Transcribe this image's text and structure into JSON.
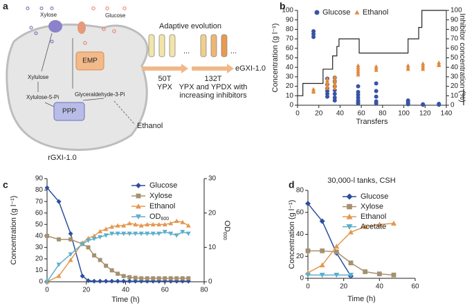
{
  "diagram": {
    "panel": "a",
    "xylose": "Xylose",
    "glucose": "Glucose",
    "xylulose": "Xylulose",
    "xylulose5p": "Xylulose-5-Pi",
    "emp": "EMP",
    "ppp": "PPP",
    "g3p": "Glyceraldehyde-3-Pi",
    "ethanol": "Ethanol",
    "strain_start": "rGXI-1.0",
    "evolution": "Adaptive evolution",
    "dots1": "...",
    "dots2": "...",
    "step1_transfers": "50T",
    "step1_medium": "YPX",
    "step2_transfers": "132T",
    "step2_medium_1": "YPX and YPDX with",
    "step2_medium_2": "increasing inhibitors",
    "strain_end": "eGXI-1.0"
  },
  "chart_data": [
    {
      "panel": "b",
      "type": "scatter",
      "xlabel": "Transfers",
      "ylabel": "Concentration (g l⁻¹)",
      "y2label": "Inhibitor concentration (%)",
      "xlim": [
        0,
        140
      ],
      "xticks": [
        0,
        20,
        40,
        60,
        80,
        100,
        120,
        140
      ],
      "ylim": [
        0,
        100
      ],
      "yticks": [
        0,
        10,
        20,
        30,
        40,
        50,
        60,
        70,
        80,
        90,
        100
      ],
      "y2lim": [
        0,
        100
      ],
      "y2ticks": [
        0,
        10,
        20,
        30,
        40,
        50,
        60,
        70,
        80,
        90,
        100
      ],
      "legend": "top",
      "series": [
        {
          "name": "Glucose",
          "color": "#3953a4",
          "marker": "circle",
          "x": [
            15,
            15,
            15,
            28,
            28,
            28,
            28,
            28,
            28,
            35,
            35,
            35,
            35,
            35,
            35,
            35,
            57,
            57,
            57,
            57,
            57,
            57,
            57,
            74,
            74,
            74,
            74,
            74,
            104,
            104,
            104,
            104,
            118,
            118,
            133,
            133
          ],
          "values": [
            78,
            75,
            72,
            28,
            22,
            18,
            15,
            12,
            9,
            29,
            25,
            20,
            16,
            12,
            8,
            5,
            20,
            14,
            11,
            8,
            5,
            3,
            2,
            23,
            15,
            9,
            4,
            2,
            5,
            3,
            2,
            1,
            1,
            0.5,
            1.5,
            0.5
          ]
        },
        {
          "name": "Ethanol",
          "color": "#e08a3c",
          "marker": "triangle",
          "x": [
            15,
            15,
            15,
            28,
            28,
            28,
            28,
            28,
            28,
            35,
            35,
            35,
            35,
            35,
            35,
            35,
            57,
            57,
            57,
            57,
            57,
            57,
            74,
            74,
            74,
            104,
            104,
            104,
            118,
            118,
            118,
            118,
            133,
            133,
            133
          ],
          "values": [
            17,
            15,
            14,
            28,
            26,
            24,
            22,
            20,
            18,
            30,
            28,
            26,
            24,
            22,
            20,
            18,
            42,
            40,
            38,
            36,
            34,
            32,
            41,
            39,
            37,
            42,
            40,
            38,
            44,
            42,
            40,
            38,
            45,
            43,
            42
          ]
        },
        {
          "color": "#222222",
          "axis": "y2",
          "step": "post",
          "x": [
            0,
            5,
            24,
            33,
            37,
            39,
            58,
            104,
            114,
            117,
            140
          ],
          "values": [
            10,
            23,
            38,
            52,
            62,
            70,
            55,
            70,
            82,
            100,
            100
          ]
        }
      ]
    },
    {
      "panel": "c",
      "type": "line",
      "xlabel": "Time (h)",
      "ylabel": "Concentration (g l⁻¹)",
      "y2label": "OD600",
      "xlim": [
        0,
        80
      ],
      "xticks": [
        0,
        20,
        40,
        60,
        80
      ],
      "ylim": [
        0,
        90
      ],
      "yticks": [
        0,
        10,
        20,
        30,
        40,
        50,
        60,
        70,
        80,
        90
      ],
      "y2lim": [
        0,
        30
      ],
      "y2ticks": [
        0,
        10,
        20,
        30
      ],
      "legend": "upper right",
      "x": [
        0,
        6,
        12,
        18,
        21,
        24,
        27,
        30,
        33,
        36,
        39,
        42,
        45,
        48,
        51,
        54,
        57,
        60,
        63,
        66,
        69,
        72
      ],
      "series": [
        {
          "name": "Glucose",
          "color": "#2c4f9e",
          "marker": "diamond",
          "values": [
            82,
            70,
            42,
            5,
            1,
            0.5,
            0.5,
            0.5,
            0.5,
            0.5,
            0.5,
            0.5,
            0.5,
            0.5,
            0.5,
            0.5,
            0.5,
            0.5,
            0.5,
            0.5,
            0.5,
            0.5
          ]
        },
        {
          "name": "Xylose",
          "color": "#a5916f",
          "marker": "square",
          "values": [
            40,
            37,
            37,
            33,
            30,
            23,
            19,
            14,
            10,
            7,
            5,
            4,
            3.5,
            3,
            3,
            3,
            3,
            3,
            3,
            3,
            3,
            3
          ]
        },
        {
          "name": "Ethanol",
          "color": "#e3984f",
          "marker": "triangle",
          "values": [
            0,
            5,
            19,
            34,
            38,
            40,
            44,
            46,
            48,
            49,
            49,
            51,
            50,
            49,
            50,
            50,
            50,
            50,
            51,
            53,
            52,
            49
          ]
        },
        {
          "name": "OD600",
          "color": "#5eaecd",
          "marker": "triangle-down",
          "axis": "y2",
          "values": [
            0,
            5,
            8,
            11,
            12,
            12.5,
            13,
            13.5,
            14,
            14,
            14,
            14,
            14,
            14,
            14,
            14,
            14,
            14.5,
            14,
            13.5,
            14.5,
            14
          ]
        }
      ]
    },
    {
      "panel": "d",
      "type": "line",
      "title": "30,000-l tanks, CSH",
      "xlabel": "Time (h)",
      "ylabel": "Concentration (g l⁻¹)",
      "xlim": [
        0,
        60
      ],
      "xticks": [
        0,
        20,
        40,
        60
      ],
      "ylim": [
        0,
        80
      ],
      "yticks": [
        0,
        20,
        40,
        60,
        80
      ],
      "legend": "upper right",
      "x": [
        0,
        8,
        16,
        24,
        32,
        40,
        48
      ],
      "series": [
        {
          "name": "Glucose",
          "color": "#2c4f9e",
          "marker": "diamond",
          "values": [
            68,
            52,
            23,
            2,
            null,
            null,
            null
          ]
        },
        {
          "name": "Xylose",
          "color": "#a5916f",
          "marker": "square",
          "values": [
            25,
            25,
            24,
            14,
            6,
            4,
            3
          ]
        },
        {
          "name": "Ethanol",
          "color": "#e3984f",
          "marker": "triangle",
          "values": [
            5,
            12,
            29,
            42,
            47,
            49,
            50
          ]
        },
        {
          "name": "Acetate",
          "color": "#5eaecd",
          "marker": "triangle-down",
          "values": [
            3,
            3,
            3,
            3,
            null,
            null,
            null
          ]
        }
      ]
    }
  ]
}
